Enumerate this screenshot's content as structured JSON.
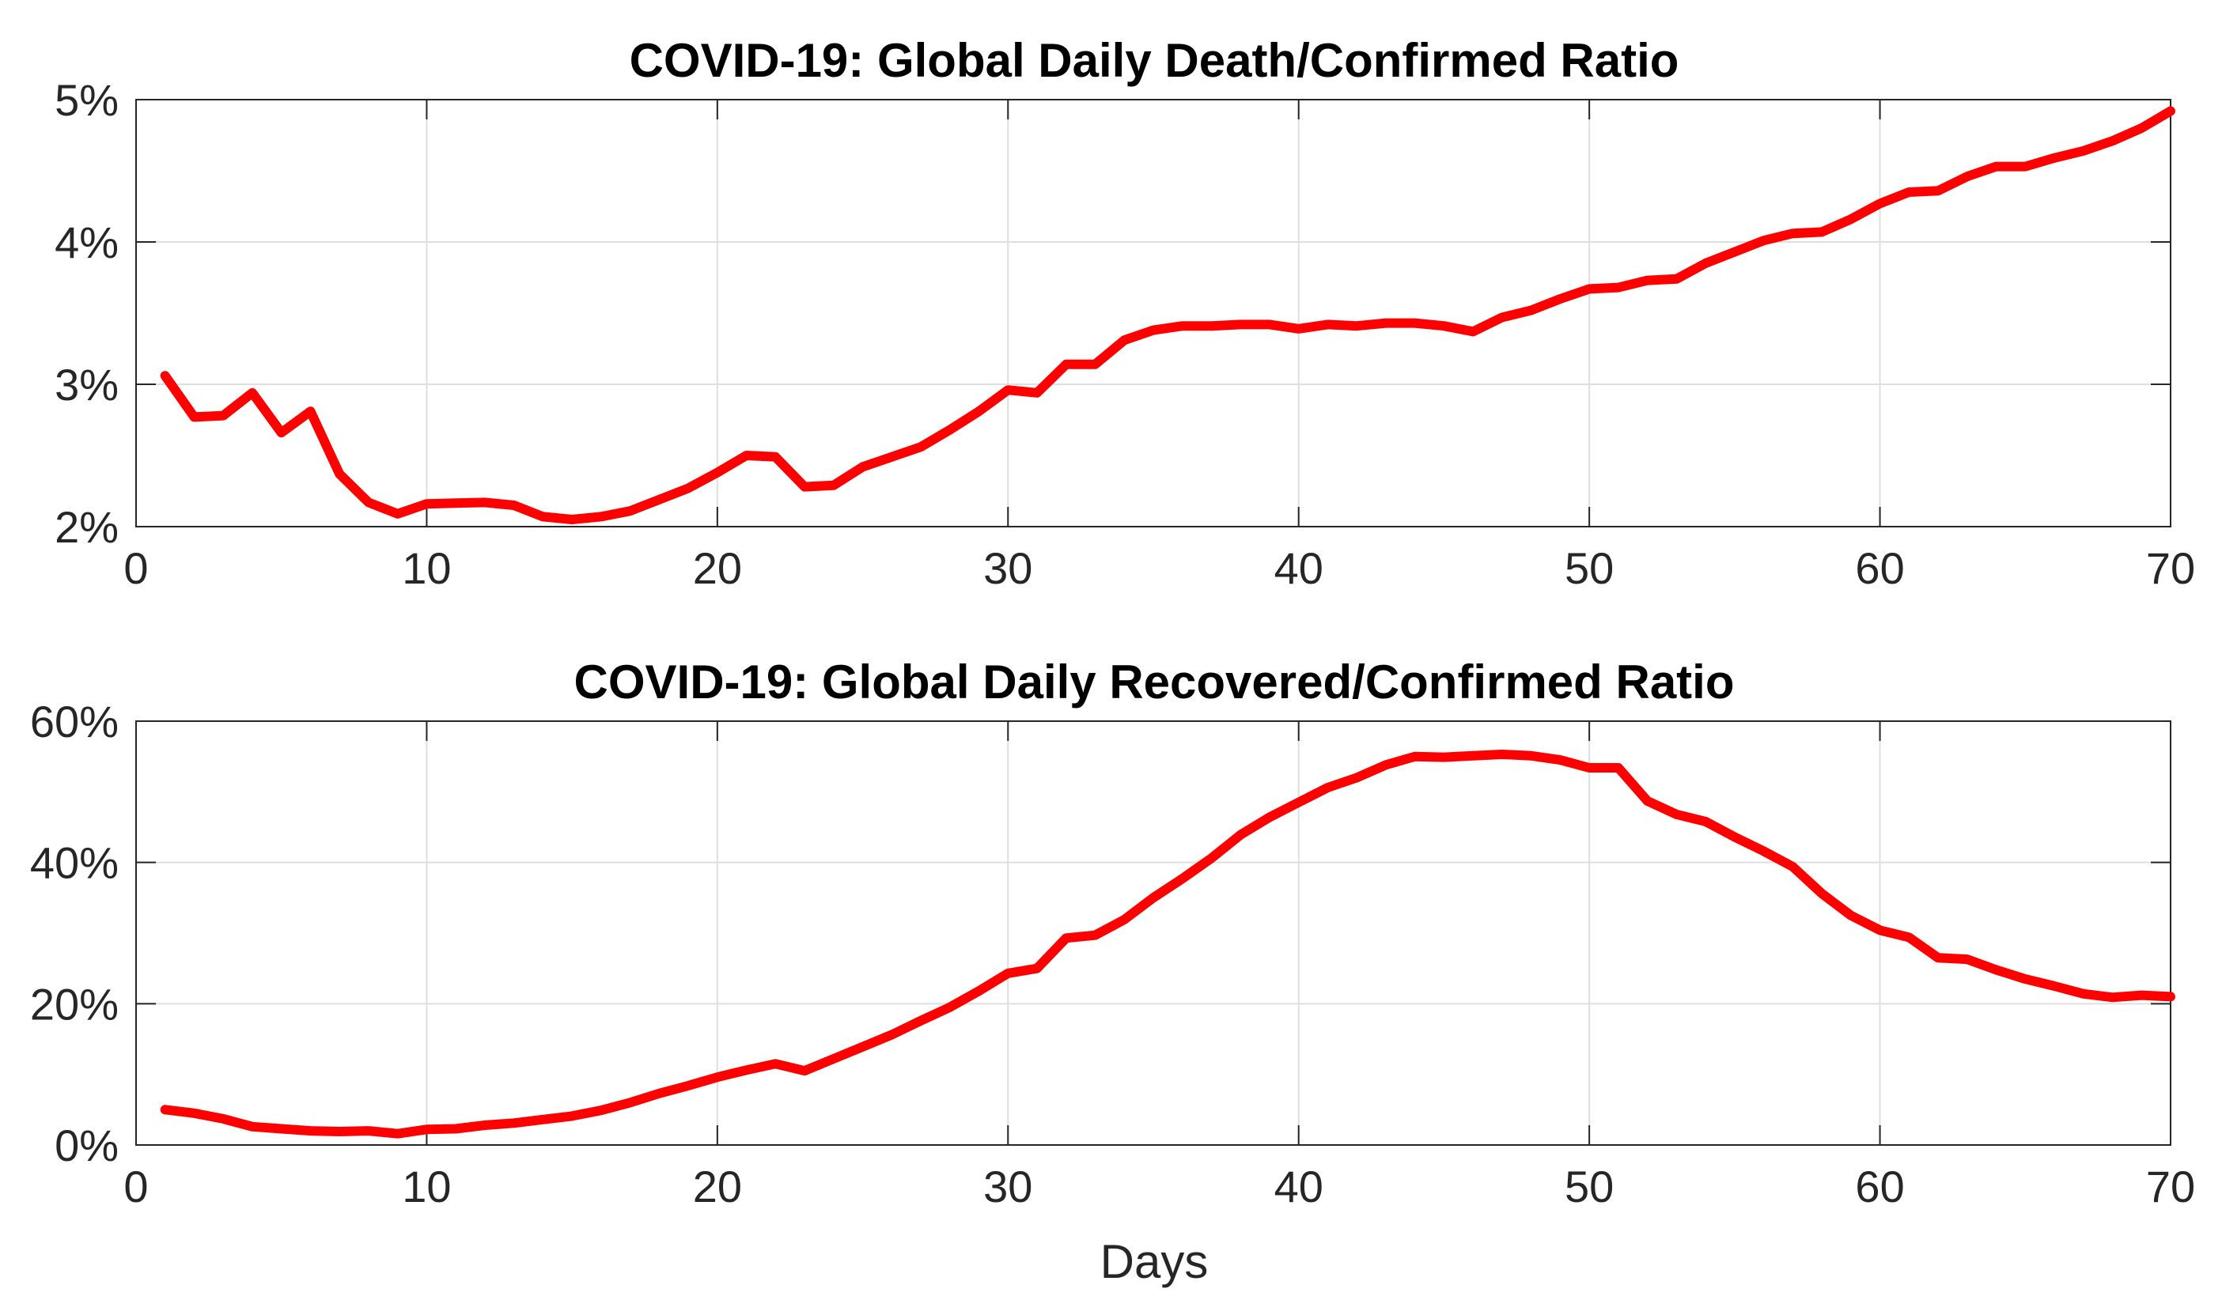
{
  "chart_data": [
    {
      "type": "line",
      "title": "COVID-19: Global Daily Death/Confirmed Ratio",
      "xlabel": "",
      "ylabel": "",
      "xlim": [
        0,
        70
      ],
      "ylim": [
        2,
        5
      ],
      "grid": true,
      "x_ticks": [
        0,
        10,
        20,
        30,
        40,
        50,
        60,
        70
      ],
      "x_tick_labels": [
        "0",
        "10",
        "20",
        "30",
        "40",
        "50",
        "60",
        "70"
      ],
      "y_ticks": [
        2,
        3,
        4,
        5
      ],
      "y_tick_labels": [
        "2%",
        "3%",
        "4%",
        "5%"
      ],
      "series": [
        {
          "name": "Death/Confirmed",
          "color": "#ff0000",
          "x": [
            1,
            2,
            3,
            4,
            5,
            6,
            7,
            8,
            9,
            10,
            11,
            12,
            13,
            14,
            15,
            16,
            17,
            18,
            19,
            20,
            21,
            22,
            23,
            24,
            25,
            26,
            27,
            28,
            29,
            30,
            31,
            32,
            33,
            34,
            35,
            36,
            37,
            38,
            39,
            40,
            41,
            42,
            43,
            44,
            45,
            46,
            47,
            48,
            49,
            50,
            51,
            52,
            53,
            54,
            55,
            56,
            57,
            58,
            59,
            60,
            61,
            62,
            63,
            64,
            65,
            66,
            67,
            68,
            69,
            70
          ],
          "values": [
            3.06,
            2.77,
            2.78,
            2.94,
            2.66,
            2.81,
            2.37,
            2.17,
            2.09,
            2.16,
            2.165,
            2.17,
            2.15,
            2.07,
            2.05,
            2.07,
            2.11,
            2.19,
            2.27,
            2.38,
            2.5,
            2.49,
            2.28,
            2.29,
            2.42,
            2.49,
            2.56,
            2.68,
            2.81,
            2.96,
            2.94,
            3.14,
            3.14,
            3.31,
            3.38,
            3.41,
            3.41,
            3.42,
            3.42,
            3.39,
            3.42,
            3.41,
            3.43,
            3.43,
            3.41,
            3.37,
            3.47,
            3.52,
            3.6,
            3.67,
            3.68,
            3.73,
            3.74,
            3.85,
            3.93,
            4.01,
            4.06,
            4.07,
            4.16,
            4.27,
            4.35,
            4.36,
            4.46,
            4.53,
            4.53,
            4.59,
            4.64,
            4.71,
            4.8,
            4.92
          ]
        }
      ]
    },
    {
      "type": "line",
      "title": "COVID-19: Global Daily Recovered/Confirmed Ratio",
      "xlabel": "Days",
      "ylabel": "",
      "xlim": [
        0,
        70
      ],
      "ylim": [
        0,
        60
      ],
      "grid": true,
      "x_ticks": [
        0,
        10,
        20,
        30,
        40,
        50,
        60,
        70
      ],
      "x_tick_labels": [
        "0",
        "10",
        "20",
        "30",
        "40",
        "50",
        "60",
        "70"
      ],
      "y_ticks": [
        0,
        20,
        40,
        60
      ],
      "y_tick_labels": [
        "0%",
        "20%",
        "40%",
        "60%"
      ],
      "series": [
        {
          "name": "Recovered/Confirmed",
          "color": "#ff0000",
          "x": [
            1,
            2,
            3,
            4,
            5,
            6,
            7,
            8,
            9,
            10,
            11,
            12,
            13,
            14,
            15,
            16,
            17,
            18,
            19,
            20,
            21,
            22,
            23,
            24,
            25,
            26,
            27,
            28,
            29,
            30,
            31,
            32,
            33,
            34,
            35,
            36,
            37,
            38,
            39,
            40,
            41,
            42,
            43,
            44,
            45,
            46,
            47,
            48,
            49,
            50,
            51,
            52,
            53,
            54,
            55,
            56,
            57,
            58,
            59,
            60,
            61,
            62,
            63,
            64,
            65,
            66,
            67,
            68,
            69,
            70
          ],
          "values": [
            5.0,
            4.5,
            3.7,
            2.6,
            2.3,
            2.0,
            1.9,
            2.0,
            1.6,
            2.2,
            2.3,
            2.8,
            3.1,
            3.6,
            4.1,
            4.9,
            6.0,
            7.3,
            8.4,
            9.6,
            10.6,
            11.5,
            10.5,
            12.2,
            13.9,
            15.6,
            17.6,
            19.5,
            21.8,
            24.3,
            25.0,
            29.3,
            29.7,
            31.9,
            35.0,
            37.7,
            40.6,
            43.9,
            46.4,
            48.5,
            50.6,
            52.0,
            53.8,
            55.0,
            54.9,
            55.1,
            55.3,
            55.1,
            54.5,
            53.4,
            53.4,
            48.7,
            46.8,
            45.8,
            43.6,
            41.6,
            39.4,
            35.6,
            32.5,
            30.4,
            29.4,
            26.5,
            26.3,
            24.8,
            23.5,
            22.5,
            21.4,
            20.9,
            21.2,
            21.0
          ]
        }
      ]
    }
  ]
}
